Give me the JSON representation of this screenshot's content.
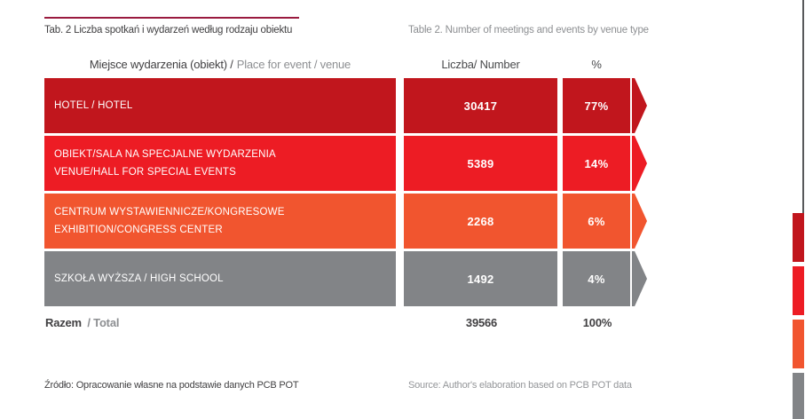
{
  "page": {
    "caption_pl": "Tab. 2 Liczba spotkań i wydarzeń według rodzaju obiektu",
    "caption_en": "Table 2. Number of meetings and events by venue type",
    "source_pl": "Źródło: Opracowanie własne na podstawie danych PCB POT",
    "source_en": "Source: Author's elaboration based on PCB POT data"
  },
  "table": {
    "headers": {
      "venue_pl": "Miejsce wydarzenia (obiekt) /",
      "venue_en": "Place for event / venue",
      "count": "Liczba/ Number",
      "percent": "%"
    },
    "rows": [
      {
        "label_pl": "HOTEL / HOTEL",
        "label_en": "",
        "count": "30417",
        "percent": "77%",
        "color": "#c1161d"
      },
      {
        "label_pl": "OBIEKT/SALA NA SPECJALNE WYDARZENIA",
        "label_en": "VENUE/HALL FOR SPECIAL EVENTS",
        "count": "5389",
        "percent": "14%",
        "color": "#ed1c24"
      },
      {
        "label_pl": "CENTRUM WYSTAWIENNICZE/KONGRESOWE",
        "label_en": "EXHIBITION/CONGRESS CENTER",
        "count": "2268",
        "percent": "6%",
        "color": "#f1552f"
      },
      {
        "label_pl": "SZKOŁA WYŻSZA / HIGH SCHOOL",
        "label_en": "",
        "count": "1492",
        "percent": "4%",
        "color": "#828487"
      }
    ],
    "total": {
      "label_pl": "Razem",
      "label_en": "/ Total",
      "count": "39566",
      "percent": "100%"
    }
  },
  "decor": {
    "rule_color": "#9a1b3f",
    "edge_line_color": "#58595b",
    "edge_tabs": [
      "#c1161d",
      "#ed1c24",
      "#f1552f",
      "#828487"
    ]
  },
  "chart_data": {
    "type": "table",
    "title": "Tab. 2 / Table 2. Number of meetings and events by venue type",
    "columns": [
      "Miejsce wydarzenia (obiekt) / Place for event / venue",
      "Liczba/ Number",
      "%"
    ],
    "categories": [
      "HOTEL / HOTEL",
      "OBIEKT/SALA NA SPECJALNE WYDARZENIA — VENUE/HALL FOR SPECIAL EVENTS",
      "CENTRUM WYSTAWIENNICZE/KONGRESOWE — EXHIBITION/CONGRESS CENTER",
      "SZKOŁA WYŻSZA / HIGH SCHOOL"
    ],
    "series": [
      {
        "name": "Liczba/ Number",
        "values": [
          30417,
          5389,
          2268,
          1492
        ]
      },
      {
        "name": "%",
        "values": [
          77,
          14,
          6,
          4
        ]
      }
    ],
    "total": {
      "label": "Razem / Total",
      "count": 39566,
      "percent": 100
    }
  }
}
